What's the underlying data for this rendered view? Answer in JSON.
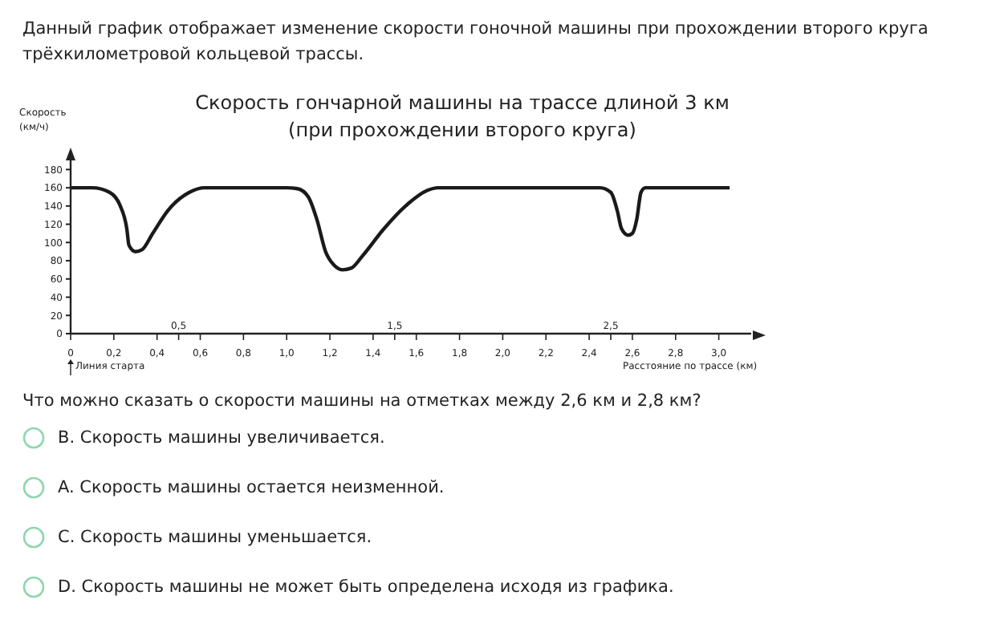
{
  "chart_data": {
    "type": "line",
    "title": "Скорость гончарной машины на трассе длиной 3 км",
    "subtitle": "(при прохождении второго круга)",
    "ylabel": "Скорость (км/ч)",
    "xlabel": "Расстояние по трассе (км)",
    "annotations": [
      "Данный график отображает изменение скорости гоночной машины при прохождении второго круга трёхкилометровой кольцевой трассы.",
      "Линия старта",
      "0,5",
      "1,5",
      "2,5",
      "Что можно сказать о скорости машины на отметках между 2,6 км и 2,8 км?",
      "B. Скорость машины увеличивается.",
      "A. Скорость машины остается неизменной.",
      "C. Скорость машины уменьшается.",
      "D. Скорость машины не может быть определена исходя из графика."
    ],
    "x": [
      0,
      0.1,
      0.18,
      0.23,
      0.26,
      0.27,
      0.3,
      0.33,
      0.38,
      0.45,
      0.55,
      0.62,
      1.0,
      1.05,
      1.1,
      1.14,
      1.18,
      1.22,
      1.26,
      1.3,
      1.35,
      1.45,
      1.55,
      1.65,
      1.7,
      2.45,
      2.5,
      2.53,
      2.55,
      2.58,
      2.6,
      2.62,
      2.64,
      2.66,
      3.05
    ],
    "series": [
      {
        "color": "#1a1a1a",
        "values": [
          160,
          160,
          155,
          140,
          115,
          97,
          90,
          92,
          110,
          135,
          155,
          160,
          160,
          159,
          150,
          125,
          90,
          75,
          70,
          72,
          85,
          115,
          140,
          157,
          160,
          160,
          155,
          135,
          115,
          108,
          110,
          125,
          155,
          160,
          160
        ]
      }
    ],
    "xlim": [
      0,
      3.15
    ],
    "ylim": [
      0,
      190
    ],
    "xticks": [
      {
        "value": 0,
        "label": "0"
      },
      {
        "value": 0.2,
        "label": "0,2"
      },
      {
        "value": 0.4,
        "label": "0,4"
      },
      {
        "value": 0.5,
        "label": null
      },
      {
        "value": 0.6,
        "label": "0,6"
      },
      {
        "value": 0.8,
        "label": "0,8"
      },
      {
        "value": 1.0,
        "label": "1,0"
      },
      {
        "value": 1.2,
        "label": "1,2"
      },
      {
        "value": 1.4,
        "label": "1,4"
      },
      {
        "value": 1.5,
        "label": null
      },
      {
        "value": 1.6,
        "label": "1,6"
      },
      {
        "value": 1.8,
        "label": "1,8"
      },
      {
        "value": 2.0,
        "label": "2,0"
      },
      {
        "value": 2.2,
        "label": "2,2"
      },
      {
        "value": 2.4,
        "label": "2,4"
      },
      {
        "value": 2.5,
        "label": null
      },
      {
        "value": 2.6,
        "label": "2,6"
      },
      {
        "value": 2.8,
        "label": "2,8"
      },
      {
        "value": 3.0,
        "label": "3,0"
      }
    ],
    "yticks": [
      0,
      20,
      40,
      60,
      80,
      100,
      120,
      140,
      160,
      180
    ],
    "marker": "none",
    "line_style": "solid"
  }
}
